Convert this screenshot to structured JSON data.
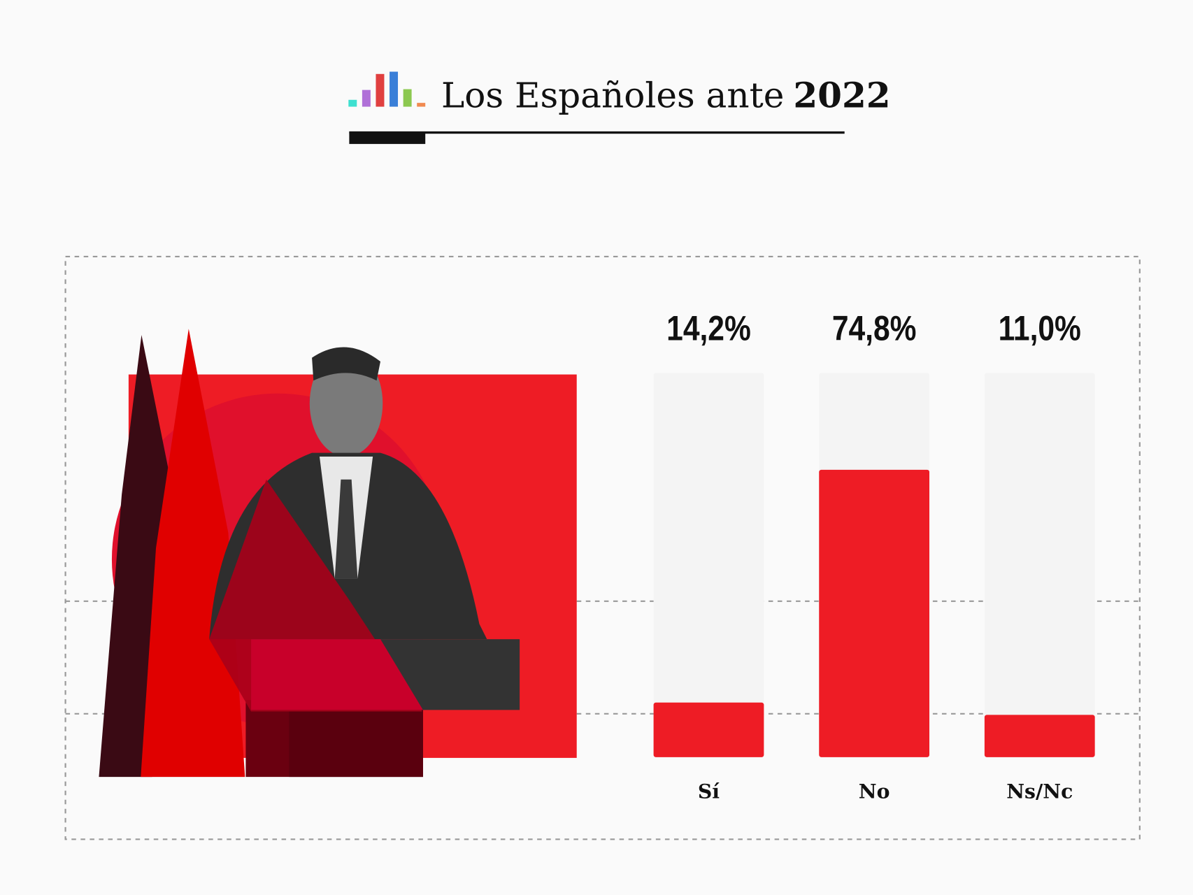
{
  "chart_data": {
    "type": "bar",
    "title": {
      "text": "Los Españoles ante",
      "emphasis": "2022"
    },
    "categories": [
      "Sí",
      "No",
      "Ns/Nc"
    ],
    "values": [
      14.2,
      74.8,
      11.0
    ],
    "value_labels": [
      "14,2%",
      "74,8%",
      "11,0%"
    ],
    "color": "#ee1c25",
    "ylim": [
      0,
      100
    ]
  }
}
